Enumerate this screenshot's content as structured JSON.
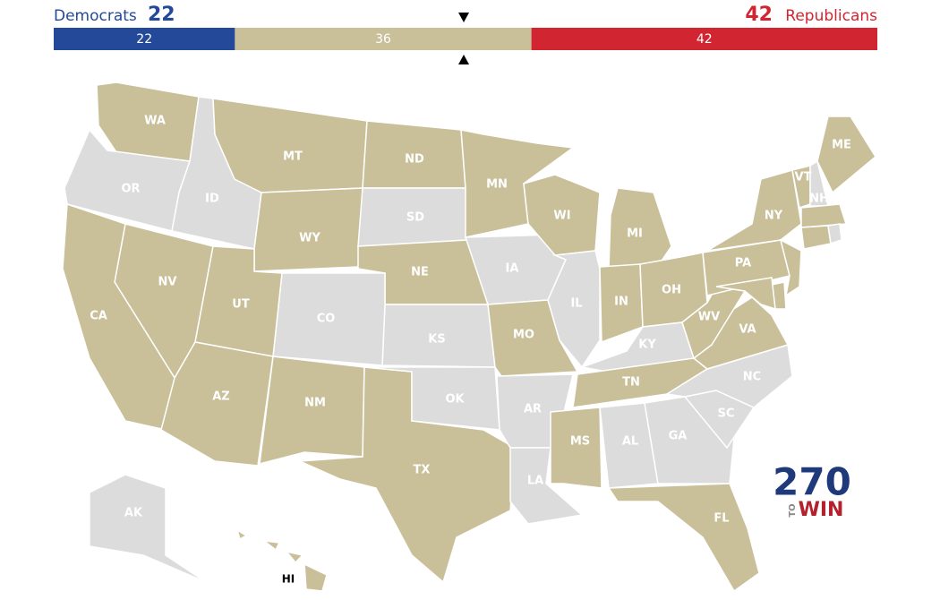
{
  "header": {
    "left": {
      "name": "Democrats",
      "count": 22,
      "color": "#244999"
    },
    "right": {
      "name": "Republicans",
      "count": 42,
      "color": "#d22532"
    },
    "middle": {
      "count": 36,
      "color": "#c9bf99"
    }
  },
  "states": [
    {
      "label": "WA",
      "color": "#c9bf99"
    },
    {
      "label": "OR",
      "color": "#dcdcdc"
    },
    {
      "label": "ID",
      "color": "#dcdcdc"
    },
    {
      "label": "MT",
      "color": "#c9bf99"
    },
    {
      "label": "WY",
      "color": "#c9bf99"
    },
    {
      "label": "ND",
      "color": "#c9bf99"
    },
    {
      "label": "SD",
      "color": "#dcdcdc"
    },
    {
      "label": "NE",
      "color": "#c9bf99"
    },
    {
      "label": "KS",
      "color": "#dcdcdc"
    },
    {
      "label": "CO",
      "color": "#dcdcdc"
    },
    {
      "label": "NV",
      "color": "#c9bf99"
    },
    {
      "label": "CA",
      "color": "#c9bf99"
    },
    {
      "label": "UT",
      "color": "#c9bf99"
    },
    {
      "label": "AZ",
      "color": "#c9bf99"
    },
    {
      "label": "NM",
      "color": "#c9bf99"
    },
    {
      "label": "TX",
      "color": "#c9bf99"
    },
    {
      "label": "OK",
      "color": "#dcdcdc"
    },
    {
      "label": "MN",
      "color": "#c9bf99"
    },
    {
      "label": "IA",
      "color": "#dcdcdc"
    },
    {
      "label": "MO",
      "color": "#c9bf99"
    },
    {
      "label": "AR",
      "color": "#dcdcdc"
    },
    {
      "label": "LA",
      "color": "#dcdcdc"
    },
    {
      "label": "WI",
      "color": "#c9bf99"
    },
    {
      "label": "IL",
      "color": "#dcdcdc"
    },
    {
      "label": "MI",
      "color": "#c9bf99"
    },
    {
      "label": "IN",
      "color": "#c9bf99"
    },
    {
      "label": "OH",
      "color": "#c9bf99"
    },
    {
      "label": "KY",
      "color": "#dcdcdc"
    },
    {
      "label": "TN",
      "color": "#c9bf99"
    },
    {
      "label": "MS",
      "color": "#c9bf99"
    },
    {
      "label": "AL",
      "color": "#dcdcdc"
    },
    {
      "label": "GA",
      "color": "#dcdcdc"
    },
    {
      "label": "FL",
      "color": "#c9bf99"
    },
    {
      "label": "SC",
      "color": "#dcdcdc"
    },
    {
      "label": "NC",
      "color": "#dcdcdc"
    },
    {
      "label": "VA",
      "color": "#c9bf99"
    },
    {
      "label": "WV",
      "color": "#c9bf99"
    },
    {
      "label": "PA",
      "color": "#c9bf99"
    },
    {
      "label": "NY",
      "color": "#c9bf99"
    },
    {
      "label": "VT",
      "color": "#c9bf99"
    },
    {
      "label": "NH",
      "color": "#dcdcdc"
    },
    {
      "label": "ME",
      "color": "#c9bf99"
    },
    {
      "label": "AK",
      "color": "#dcdcdc"
    },
    {
      "label": "HI",
      "color": "#c9bf99"
    }
  ],
  "logo": {
    "number": "270",
    "to": "TO",
    "win": "WIN"
  }
}
